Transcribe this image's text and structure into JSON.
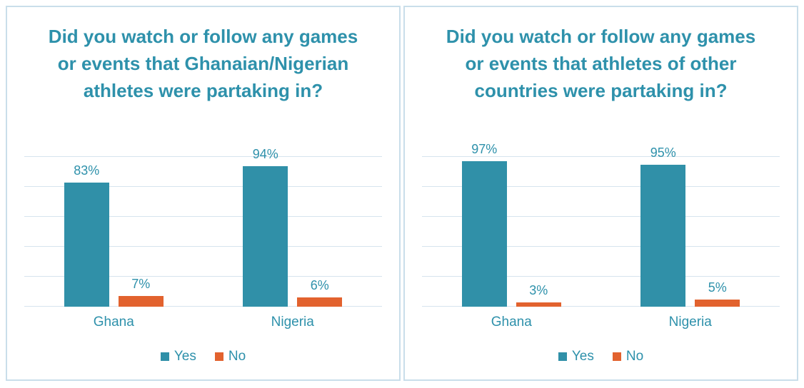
{
  "colors": {
    "teal_text": "#2e91ab",
    "bar_yes": "#3090a8",
    "bar_no": "#e2622e",
    "gridline": "#d6e4ee",
    "panel_border": "#c9deea",
    "background": "#ffffff"
  },
  "chart_data": [
    {
      "type": "bar",
      "title": "Did you watch or follow any games or events that Ghanaian/Nigerian athletes were partaking in?",
      "categories": [
        "Ghana",
        "Nigeria"
      ],
      "series": [
        {
          "name": "Yes",
          "color": "#3090a8",
          "values": [
            83,
            94
          ]
        },
        {
          "name": "No",
          "color": "#e2622e",
          "values": [
            7,
            6
          ]
        }
      ],
      "label_suffix": "%",
      "ylim": [
        0,
        100
      ],
      "gridline_step": 20,
      "grid": true,
      "legend_position": "bottom"
    },
    {
      "type": "bar",
      "title": "Did you watch or follow any games or events that athletes of other countries were partaking in?",
      "categories": [
        "Ghana",
        "Nigeria"
      ],
      "series": [
        {
          "name": "Yes",
          "color": "#3090a8",
          "values": [
            97,
            95
          ]
        },
        {
          "name": "No",
          "color": "#e2622e",
          "values": [
            3,
            5
          ]
        }
      ],
      "label_suffix": "%",
      "ylim": [
        0,
        100
      ],
      "gridline_step": 20,
      "grid": true,
      "legend_position": "bottom"
    }
  ]
}
